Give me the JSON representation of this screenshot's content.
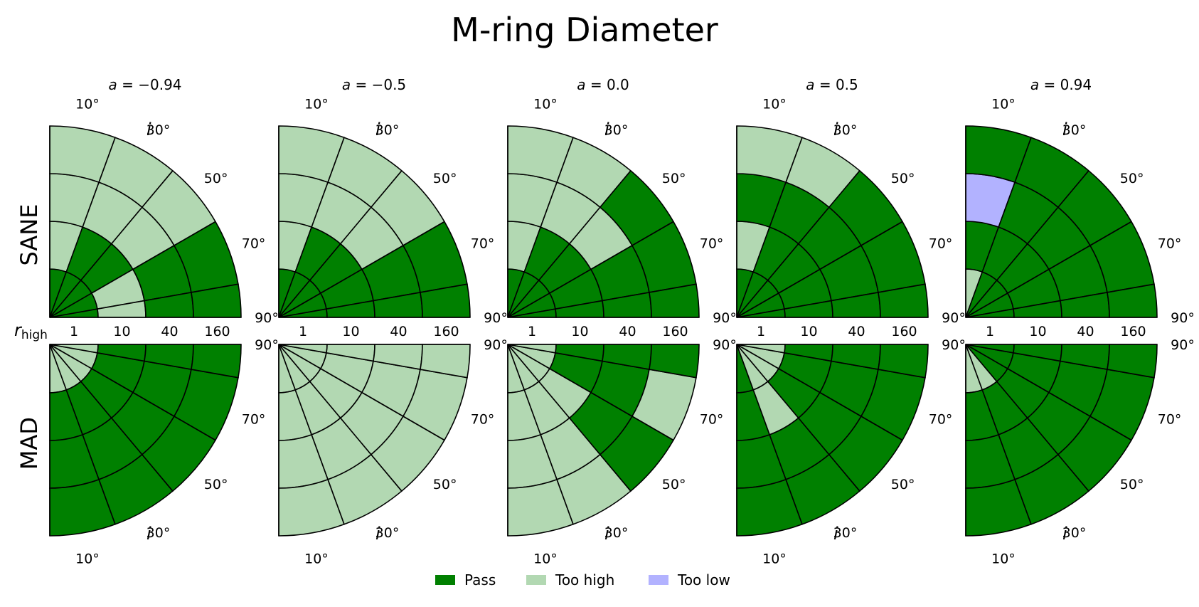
{
  "chart_data": {
    "type": "polar-heatmap",
    "title": "M-ring Diameter",
    "row_labels": [
      "SANE",
      "MAD"
    ],
    "panel_titles": [
      {
        "var": "a",
        "rest": " = −0.94"
      },
      {
        "var": "a",
        "rest": " = −0.5"
      },
      {
        "var": "a",
        "rest": " = 0.0"
      },
      {
        "var": "a",
        "rest": " = 0.5"
      },
      {
        "var": "a",
        "rest": " = 0.94"
      }
    ],
    "spins": [
      -0.94,
      -0.5,
      0.0,
      0.5,
      0.94
    ],
    "r_high": [
      1,
      10,
      40,
      160
    ],
    "r_high_label": {
      "base": "r",
      "sub": "high"
    },
    "inclinations": [
      10,
      30,
      50,
      70,
      90
    ],
    "inclination_ticks": [
      "10°",
      "30°",
      "50°",
      "70°",
      "90°"
    ],
    "inclination_label": "i",
    "categories": [
      "Pass",
      "Too high",
      "Too low"
    ],
    "colors": {
      "Pass": "#008000",
      "Too high": "#b2d8b2",
      "Too low": "#b2b2ff"
    },
    "legend": {
      "placement": "bottom-center",
      "entries": [
        "Pass",
        "Too high",
        "Too low"
      ]
    },
    "note": "status[row][spin][inclination index 0..4 = 10°..90°][r_high index 0..3 = 1..160]; P = Pass, H = Too high, L = Too low",
    "status": {
      "SANE": [
        [
          [
            "P",
            "H",
            "H",
            "H"
          ],
          [
            "P",
            "P",
            "H",
            "H"
          ],
          [
            "P",
            "P",
            "H",
            "H"
          ],
          [
            "P",
            "H",
            "P",
            "P"
          ],
          [
            "P",
            "H",
            "P",
            "P"
          ]
        ],
        [
          [
            "P",
            "H",
            "H",
            "H"
          ],
          [
            "P",
            "P",
            "H",
            "H"
          ],
          [
            "P",
            "P",
            "H",
            "H"
          ],
          [
            "P",
            "P",
            "P",
            "P"
          ],
          [
            "P",
            "P",
            "P",
            "P"
          ]
        ],
        [
          [
            "P",
            "H",
            "H",
            "H"
          ],
          [
            "P",
            "P",
            "H",
            "H"
          ],
          [
            "P",
            "P",
            "H",
            "P"
          ],
          [
            "P",
            "P",
            "P",
            "P"
          ],
          [
            "P",
            "P",
            "P",
            "P"
          ]
        ],
        [
          [
            "P",
            "H",
            "P",
            "H"
          ],
          [
            "P",
            "P",
            "P",
            "H"
          ],
          [
            "P",
            "P",
            "P",
            "P"
          ],
          [
            "P",
            "P",
            "P",
            "P"
          ],
          [
            "P",
            "P",
            "P",
            "P"
          ]
        ],
        [
          [
            "H",
            "P",
            "L",
            "P"
          ],
          [
            "P",
            "P",
            "P",
            "P"
          ],
          [
            "P",
            "P",
            "P",
            "P"
          ],
          [
            "P",
            "P",
            "P",
            "P"
          ],
          [
            "P",
            "P",
            "P",
            "P"
          ]
        ]
      ],
      "MAD": [
        [
          [
            "H",
            "P",
            "P",
            "P"
          ],
          [
            "H",
            "P",
            "P",
            "P"
          ],
          [
            "H",
            "P",
            "P",
            "P"
          ],
          [
            "H",
            "P",
            "P",
            "P"
          ],
          [
            "H",
            "P",
            "P",
            "P"
          ]
        ],
        [
          [
            "H",
            "H",
            "H",
            "H"
          ],
          [
            "H",
            "H",
            "H",
            "H"
          ],
          [
            "H",
            "H",
            "H",
            "H"
          ],
          [
            "H",
            "H",
            "H",
            "H"
          ],
          [
            "H",
            "H",
            "H",
            "H"
          ]
        ],
        [
          [
            "H",
            "H",
            "H",
            "H"
          ],
          [
            "H",
            "H",
            "H",
            "H"
          ],
          [
            "H",
            "H",
            "P",
            "P"
          ],
          [
            "H",
            "P",
            "P",
            "H"
          ],
          [
            "H",
            "P",
            "P",
            "P"
          ]
        ],
        [
          [
            "P",
            "P",
            "P",
            "P"
          ],
          [
            "H",
            "H",
            "P",
            "P"
          ],
          [
            "H",
            "P",
            "P",
            "P"
          ],
          [
            "H",
            "P",
            "P",
            "P"
          ],
          [
            "H",
            "P",
            "P",
            "P"
          ]
        ],
        [
          [
            "H",
            "P",
            "P",
            "P"
          ],
          [
            "H",
            "P",
            "P",
            "P"
          ],
          [
            "P",
            "P",
            "P",
            "P"
          ],
          [
            "P",
            "P",
            "P",
            "P"
          ],
          [
            "P",
            "P",
            "P",
            "P"
          ]
        ]
      ]
    }
  }
}
